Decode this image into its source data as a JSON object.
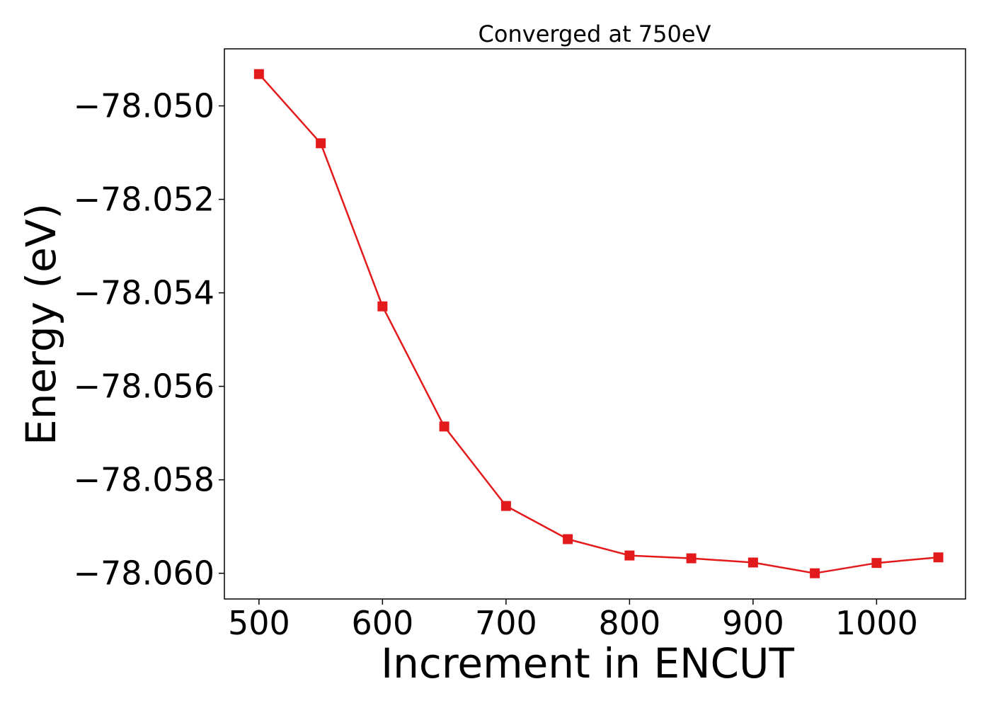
{
  "chart_data": {
    "type": "line",
    "title": "Converged at 750eV",
    "xlabel": "Increment in ENCUT",
    "ylabel": "Energy (eV)",
    "xlim": [
      472,
      1072
    ],
    "ylim": [
      -78.06055,
      -78.04878
    ],
    "xticks": [
      500,
      600,
      700,
      800,
      900,
      1000
    ],
    "xtick_labels": [
      "500",
      "600",
      "700",
      "800",
      "900",
      "1000"
    ],
    "yticks": [
      -78.05,
      -78.052,
      -78.054,
      -78.056,
      -78.058,
      -78.06
    ],
    "ytick_labels": [
      "−78.050",
      "−78.052",
      "−78.054",
      "−78.056",
      "−78.058",
      "−78.060"
    ],
    "grid": false,
    "series": [
      {
        "color": "#e31a1c",
        "marker": "square",
        "x": [
          500,
          550,
          600,
          650,
          700,
          750,
          800,
          850,
          900,
          950,
          1000,
          1050
        ],
        "y": [
          -78.04932,
          -78.0508,
          -78.05429,
          -78.05686,
          -78.05856,
          -78.05927,
          -78.05962,
          -78.05968,
          -78.05977,
          -78.06,
          -78.05978,
          -78.05966
        ]
      }
    ]
  }
}
